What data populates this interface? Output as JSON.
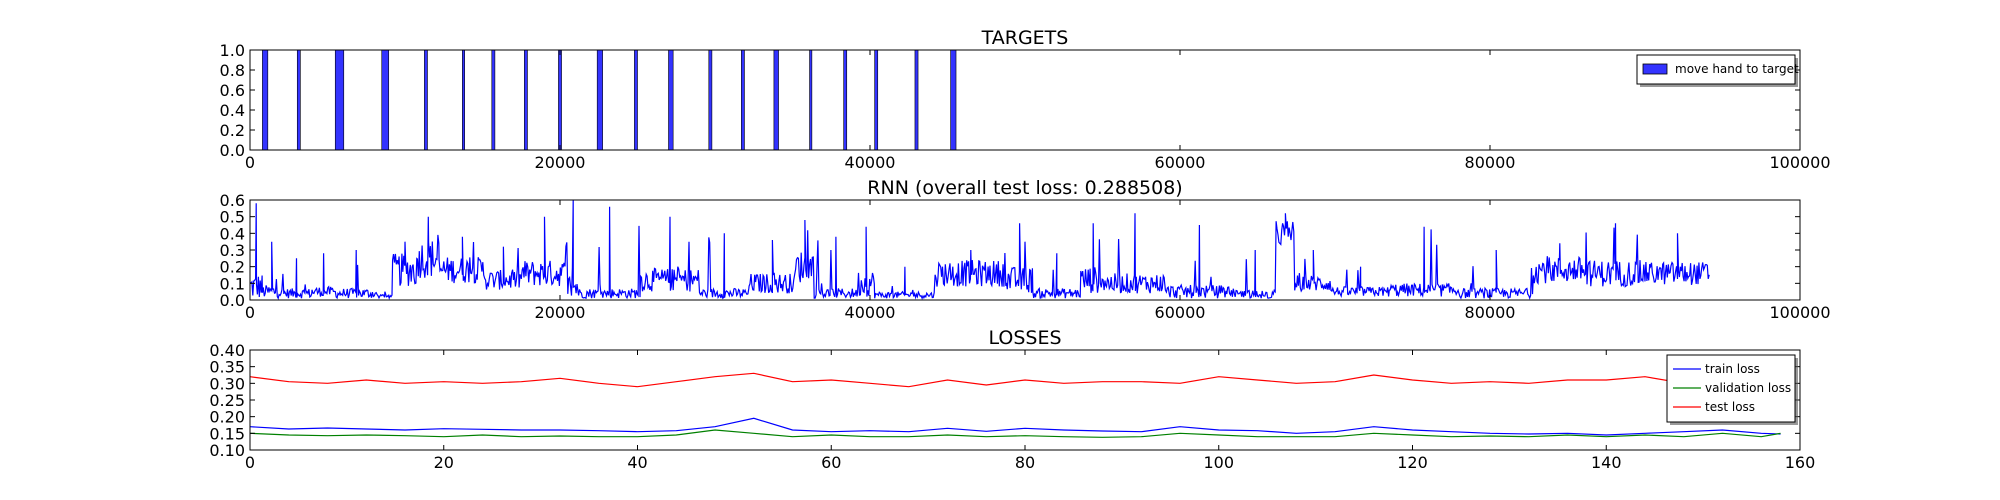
{
  "chart_data": [
    {
      "type": "bar",
      "title": "TARGETS",
      "xlabel": "",
      "ylabel": "",
      "xlim": [
        0,
        100000
      ],
      "ylim": [
        0,
        1.0
      ],
      "xticks": [
        0,
        20000,
        40000,
        60000,
        80000,
        100000
      ],
      "xtick_labels": [
        "0",
        "20000",
        "40000",
        "60000",
        "80000",
        "100000"
      ],
      "yticks": [
        0.0,
        0.2,
        0.4,
        0.6,
        0.8,
        1.0
      ],
      "ytick_labels": [
        "0.0",
        "0.2",
        "0.4",
        "0.6",
        "0.8",
        "1.0"
      ],
      "legend": {
        "position": "upper right",
        "entries": [
          "move hand to target"
        ]
      },
      "series": [
        {
          "name": "move hand to target",
          "color": "#3333ff",
          "value": 1.0,
          "intervals": [
            [
              800,
              1150
            ],
            [
              3050,
              3250
            ],
            [
              5500,
              6050
            ],
            [
              8500,
              8950
            ],
            [
              11250,
              11450
            ],
            [
              13700,
              13850
            ],
            [
              15600,
              15800
            ],
            [
              17700,
              17900
            ],
            [
              19900,
              20100
            ],
            [
              22400,
              22750
            ],
            [
              24800,
              25000
            ],
            [
              27000,
              27300
            ],
            [
              29600,
              29800
            ],
            [
              31700,
              31900
            ],
            [
              33800,
              34100
            ],
            [
              36100,
              36250
            ],
            [
              38300,
              38500
            ],
            [
              40300,
              40500
            ],
            [
              42900,
              43100
            ],
            [
              45200,
              45550
            ]
          ]
        }
      ]
    },
    {
      "type": "line",
      "title": "RNN (overall test loss: 0.288508)",
      "xlabel": "",
      "ylabel": "",
      "xlim": [
        0,
        100000
      ],
      "ylim": [
        0.0,
        0.6
      ],
      "xticks": [
        0,
        20000,
        40000,
        60000,
        80000,
        100000
      ],
      "xtick_labels": [
        "0",
        "20000",
        "40000",
        "60000",
        "80000",
        "100000"
      ],
      "yticks": [
        0.0,
        0.1,
        0.2,
        0.3,
        0.4,
        0.5,
        0.6
      ],
      "ytick_labels": [
        "0.0",
        "0.1",
        "0.2",
        "0.3",
        "0.4",
        "0.5",
        "0.6"
      ],
      "series": [
        {
          "name": "",
          "color": "#0000ff",
          "x_end": 94200,
          "segments": [
            {
              "x0": 0,
              "x1": 800,
              "base": 0.08,
              "amp": 0.08,
              "peak": 0.58
            },
            {
              "x0": 800,
              "x1": 2000,
              "base": 0.05,
              "amp": 0.04,
              "peak": 0.35
            },
            {
              "x0": 2000,
              "x1": 4000,
              "base": 0.04,
              "amp": 0.03,
              "peak": 0.25
            },
            {
              "x0": 4000,
              "x1": 5500,
              "base": 0.05,
              "amp": 0.03,
              "peak": 0.28
            },
            {
              "x0": 5500,
              "x1": 8200,
              "base": 0.04,
              "amp": 0.03,
              "peak": 0.3
            },
            {
              "x0": 8200,
              "x1": 9200,
              "base": 0.02,
              "amp": 0.02,
              "peak": 0.05
            },
            {
              "x0": 9200,
              "x1": 10800,
              "base": 0.18,
              "amp": 0.1,
              "peak": 0.35
            },
            {
              "x0": 10800,
              "x1": 12200,
              "base": 0.25,
              "amp": 0.12,
              "peak": 0.5
            },
            {
              "x0": 12200,
              "x1": 15200,
              "base": 0.18,
              "amp": 0.08,
              "peak": 0.38
            },
            {
              "x0": 15200,
              "x1": 17500,
              "base": 0.12,
              "amp": 0.06,
              "peak": 0.32
            },
            {
              "x0": 17500,
              "x1": 20500,
              "base": 0.16,
              "amp": 0.08,
              "peak": 0.5
            },
            {
              "x0": 20500,
              "x1": 21200,
              "base": 0.08,
              "amp": 0.08,
              "peak": 0.6
            },
            {
              "x0": 21200,
              "x1": 25200,
              "base": 0.04,
              "amp": 0.03,
              "peak": 0.56
            },
            {
              "x0": 25200,
              "x1": 29000,
              "base": 0.12,
              "amp": 0.07,
              "peak": 0.5
            },
            {
              "x0": 29000,
              "x1": 32200,
              "base": 0.04,
              "amp": 0.03,
              "peak": 0.4
            },
            {
              "x0": 32200,
              "x1": 35200,
              "base": 0.1,
              "amp": 0.06,
              "peak": 0.36
            },
            {
              "x0": 35200,
              "x1": 36400,
              "base": 0.2,
              "amp": 0.1,
              "peak": 0.48
            },
            {
              "x0": 36400,
              "x1": 39200,
              "base": 0.04,
              "amp": 0.03,
              "peak": 0.38
            },
            {
              "x0": 39200,
              "x1": 40300,
              "base": 0.1,
              "amp": 0.08,
              "peak": 0.44
            },
            {
              "x0": 40300,
              "x1": 44200,
              "base": 0.03,
              "amp": 0.02,
              "peak": 0.2
            },
            {
              "x0": 44200,
              "x1": 48800,
              "base": 0.16,
              "amp": 0.08,
              "peak": 0.3
            },
            {
              "x0": 48800,
              "x1": 50500,
              "base": 0.12,
              "amp": 0.08,
              "peak": 0.46
            },
            {
              "x0": 50500,
              "x1": 53600,
              "base": 0.04,
              "amp": 0.03,
              "peak": 0.28
            },
            {
              "x0": 53600,
              "x1": 55200,
              "base": 0.12,
              "amp": 0.08,
              "peak": 0.46
            },
            {
              "x0": 55200,
              "x1": 59000,
              "base": 0.1,
              "amp": 0.06,
              "peak": 0.52
            },
            {
              "x0": 59000,
              "x1": 63500,
              "base": 0.05,
              "amp": 0.04,
              "peak": 0.45
            },
            {
              "x0": 63500,
              "x1": 66200,
              "base": 0.03,
              "amp": 0.03,
              "peak": 0.3
            },
            {
              "x0": 66200,
              "x1": 67400,
              "base": 0.4,
              "amp": 0.08,
              "peak": 0.52
            },
            {
              "x0": 67400,
              "x1": 69800,
              "base": 0.1,
              "amp": 0.05,
              "peak": 0.3
            },
            {
              "x0": 69800,
              "x1": 73500,
              "base": 0.05,
              "amp": 0.03,
              "peak": 0.2
            },
            {
              "x0": 73500,
              "x1": 78000,
              "base": 0.06,
              "amp": 0.04,
              "peak": 0.44
            },
            {
              "x0": 78000,
              "x1": 82800,
              "base": 0.04,
              "amp": 0.03,
              "peak": 0.3
            },
            {
              "x0": 82800,
              "x1": 86200,
              "base": 0.18,
              "amp": 0.08,
              "peak": 0.34
            },
            {
              "x0": 86200,
              "x1": 90000,
              "base": 0.16,
              "amp": 0.08,
              "peak": 0.46
            },
            {
              "x0": 90000,
              "x1": 94200,
              "base": 0.16,
              "amp": 0.07,
              "peak": 0.4
            }
          ]
        }
      ]
    },
    {
      "type": "line",
      "title": "LOSSES",
      "xlabel": "",
      "ylabel": "",
      "xlim": [
        0,
        160
      ],
      "ylim": [
        0.1,
        0.4
      ],
      "xticks": [
        0,
        20,
        40,
        60,
        80,
        100,
        120,
        140,
        160
      ],
      "xtick_labels": [
        "0",
        "20",
        "40",
        "60",
        "80",
        "100",
        "120",
        "140",
        "160"
      ],
      "yticks": [
        0.1,
        0.15,
        0.2,
        0.25,
        0.3,
        0.35,
        0.4
      ],
      "ytick_labels": [
        "0.10",
        "0.15",
        "0.20",
        "0.25",
        "0.30",
        "0.35",
        "0.40"
      ],
      "legend": {
        "position": "upper right",
        "entries": [
          "train loss",
          "validation loss",
          "test loss"
        ]
      },
      "x": [
        0,
        4,
        8,
        12,
        16,
        20,
        24,
        28,
        32,
        36,
        40,
        44,
        48,
        52,
        56,
        60,
        64,
        68,
        72,
        76,
        80,
        84,
        88,
        92,
        96,
        100,
        104,
        108,
        112,
        116,
        120,
        124,
        128,
        132,
        136,
        140,
        144,
        148,
        152,
        156,
        158
      ],
      "series": [
        {
          "name": "train loss",
          "color": "#0000ff",
          "values": [
            0.17,
            0.163,
            0.166,
            0.163,
            0.16,
            0.164,
            0.162,
            0.16,
            0.16,
            0.158,
            0.155,
            0.158,
            0.17,
            0.195,
            0.16,
            0.155,
            0.158,
            0.155,
            0.165,
            0.156,
            0.165,
            0.16,
            0.157,
            0.155,
            0.17,
            0.16,
            0.158,
            0.15,
            0.155,
            0.17,
            0.16,
            0.155,
            0.15,
            0.148,
            0.15,
            0.145,
            0.15,
            0.155,
            0.16,
            0.15,
            0.148
          ]
        },
        {
          "name": "validation loss",
          "color": "#008000",
          "values": [
            0.15,
            0.145,
            0.143,
            0.145,
            0.143,
            0.14,
            0.145,
            0.14,
            0.142,
            0.14,
            0.14,
            0.145,
            0.16,
            0.15,
            0.14,
            0.145,
            0.14,
            0.14,
            0.145,
            0.14,
            0.143,
            0.14,
            0.138,
            0.14,
            0.15,
            0.145,
            0.14,
            0.14,
            0.14,
            0.15,
            0.145,
            0.14,
            0.142,
            0.14,
            0.145,
            0.14,
            0.145,
            0.14,
            0.15,
            0.14,
            0.15
          ]
        },
        {
          "name": "test loss",
          "color": "#ff0000",
          "values": [
            0.32,
            0.305,
            0.3,
            0.31,
            0.3,
            0.305,
            0.3,
            0.305,
            0.315,
            0.3,
            0.29,
            0.305,
            0.32,
            0.33,
            0.305,
            0.31,
            0.3,
            0.29,
            0.31,
            0.295,
            0.31,
            0.3,
            0.305,
            0.305,
            0.3,
            0.32,
            0.31,
            0.3,
            0.305,
            0.325,
            0.31,
            0.3,
            0.305,
            0.3,
            0.31,
            0.31,
            0.32,
            0.3,
            0.31,
            0.305,
            0.3
          ]
        }
      ]
    }
  ]
}
